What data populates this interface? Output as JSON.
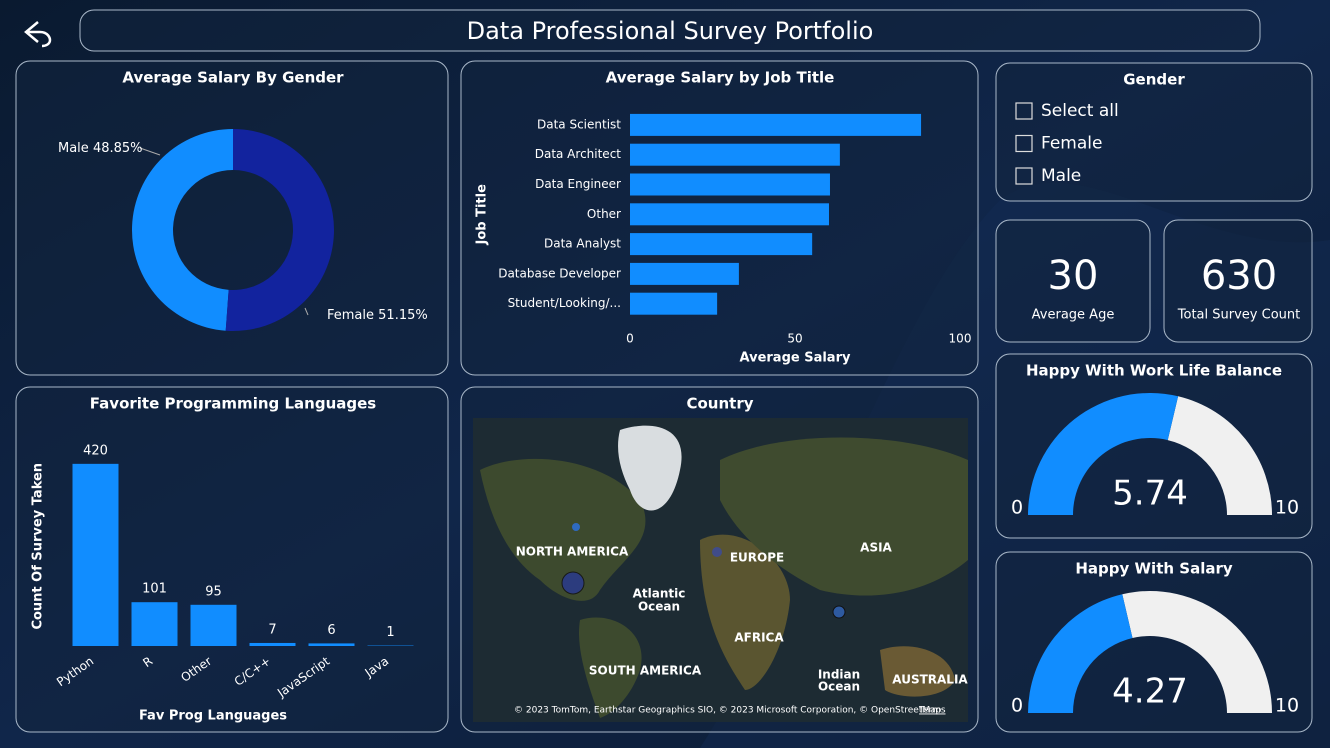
{
  "header": {
    "title": "Data Professional Survey Portfolio"
  },
  "chart_data": [
    {
      "type": "pie",
      "title": "Average Salary By Gender",
      "categories": [
        "Male",
        "Female"
      ],
      "values": [
        48.85,
        51.15
      ],
      "value_labels": [
        "48.85%",
        "51.15%"
      ],
      "colors": [
        "#118dff",
        "#12239e"
      ]
    },
    {
      "type": "bar",
      "horizontal": true,
      "title": "Average Salary by Job Title",
      "x_label": "Average Salary",
      "y_label": "Job Title",
      "categories": [
        "Data Scientist",
        "Data Architect",
        "Data Engineer",
        "Other",
        "Data Analyst",
        "Database Developer",
        "Student/Looking/..."
      ],
      "values": [
        88.2,
        63.6,
        60.6,
        60.3,
        55.2,
        33.0,
        26.4
      ],
      "color": "#118dff",
      "xlim": [
        0,
        100
      ],
      "xticks": [
        0,
        50,
        100
      ]
    },
    {
      "type": "bar",
      "horizontal": false,
      "title": "Favorite Programming Languages",
      "x_label": "Fav Prog Languages",
      "y_label": "Count Of Survey Taken",
      "categories": [
        "Python",
        "R",
        "Other",
        "C/C++",
        "JavaScript",
        "Java"
      ],
      "values": [
        420,
        101,
        95,
        7,
        6,
        1
      ],
      "color": "#118dff",
      "ylim": [
        0,
        460
      ]
    },
    {
      "type": "gauge",
      "title": "Happy With Work Life Balance",
      "value": 5.74,
      "min": 0,
      "max": 10,
      "color": "#118dff",
      "track_color": "#f0f0f0"
    },
    {
      "type": "gauge",
      "title": "Happy With Salary",
      "value": 4.27,
      "min": 0,
      "max": 10,
      "color": "#118dff",
      "track_color": "#f0f0f0"
    }
  ],
  "gender_slicer": {
    "title": "Gender",
    "options": [
      "Select all",
      "Female",
      "Male"
    ]
  },
  "kpis": [
    {
      "value": "30",
      "label": "Average Age"
    },
    {
      "value": "630",
      "label": "Total Survey Count"
    }
  ],
  "map": {
    "title": "Country",
    "labels": [
      "NORTH AMERICA",
      "EUROPE",
      "ASIA",
      "Atlantic",
      "Ocean",
      "AFRICA",
      "SOUTH AMERICA",
      "Indian",
      "Ocean",
      "AUSTRALIA"
    ],
    "attribution": "© 2023 TomTom, Earthstar Geographics SIO, © 2023 Microsoft Corporation, © OpenStreetMap",
    "terms": "Terms"
  }
}
